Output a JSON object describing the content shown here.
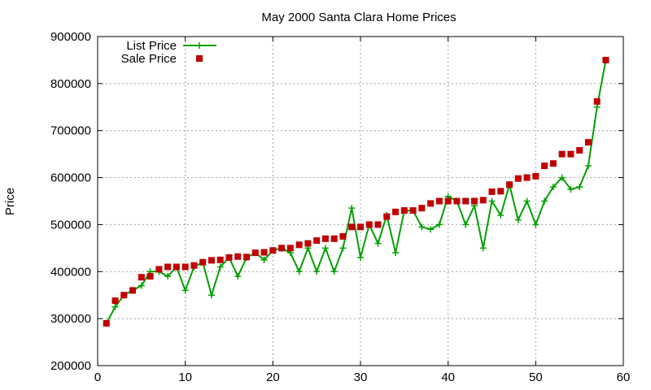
{
  "chart_data": {
    "type": "line",
    "title": "May 2000 Santa Clara Home Prices",
    "xlabel": "",
    "ylabel": "Price",
    "xlim": [
      0,
      60
    ],
    "ylim": [
      200000,
      900000
    ],
    "xticks": [
      0,
      10,
      20,
      30,
      40,
      50,
      60
    ],
    "yticks": [
      200000,
      300000,
      400000,
      500000,
      600000,
      700000,
      800000,
      900000
    ],
    "grid": true,
    "legend_position": "top-left",
    "series": [
      {
        "name": "List Price",
        "style": "line-with-plus-markers",
        "color": "#00a000",
        "x": [
          1,
          2,
          3,
          4,
          5,
          6,
          7,
          8,
          9,
          10,
          11,
          12,
          13,
          14,
          15,
          16,
          17,
          18,
          19,
          20,
          21,
          22,
          23,
          24,
          25,
          26,
          27,
          28,
          29,
          30,
          31,
          32,
          33,
          34,
          35,
          36,
          37,
          38,
          39,
          40,
          41,
          42,
          43,
          44,
          45,
          46,
          47,
          48,
          49,
          50,
          51,
          52,
          53,
          54,
          55,
          56,
          57,
          58
        ],
        "y": [
          290000,
          325000,
          350000,
          360000,
          370000,
          400000,
          400000,
          390000,
          410000,
          360000,
          410000,
          420000,
          350000,
          410000,
          430000,
          390000,
          430000,
          440000,
          425000,
          445000,
          450000,
          440000,
          400000,
          450000,
          400000,
          450000,
          400000,
          450000,
          535000,
          430000,
          500000,
          460000,
          520000,
          440000,
          530000,
          530000,
          495000,
          490000,
          500000,
          560000,
          550000,
          500000,
          540000,
          450000,
          550000,
          520000,
          585000,
          510000,
          550000,
          500000,
          550000,
          580000,
          600000,
          575000,
          580000,
          625000,
          750000,
          850000
        ]
      },
      {
        "name": "Sale Price",
        "style": "square-points",
        "color": "#c00000",
        "x": [
          1,
          2,
          3,
          4,
          5,
          6,
          7,
          8,
          9,
          10,
          11,
          12,
          13,
          14,
          15,
          16,
          17,
          18,
          19,
          20,
          21,
          22,
          23,
          24,
          25,
          26,
          27,
          28,
          29,
          30,
          31,
          32,
          33,
          34,
          35,
          36,
          37,
          38,
          39,
          40,
          41,
          42,
          43,
          44,
          45,
          46,
          47,
          48,
          49,
          50,
          51,
          52,
          53,
          54,
          55,
          56,
          57,
          58
        ],
        "y": [
          290000,
          338000,
          350000,
          360000,
          388000,
          390000,
          405000,
          410000,
          410000,
          410000,
          413000,
          420000,
          424000,
          425000,
          430000,
          432000,
          431000,
          440000,
          441000,
          445000,
          450000,
          450000,
          457000,
          460000,
          466000,
          470000,
          470000,
          475000,
          495000,
          495000,
          500000,
          500000,
          517000,
          527000,
          530000,
          530000,
          535000,
          545000,
          550000,
          550000,
          550000,
          550000,
          550000,
          552000,
          570000,
          571000,
          585000,
          598000,
          600000,
          603000,
          625000,
          630000,
          650000,
          650000,
          658000,
          675000,
          762000,
          850000
        ]
      }
    ]
  }
}
